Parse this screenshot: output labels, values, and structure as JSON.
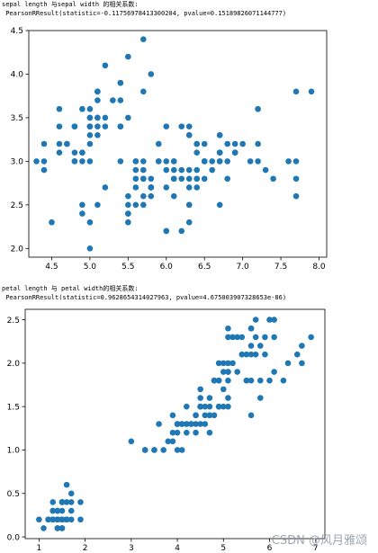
{
  "outputs": [
    {
      "line1": "sepal length 与sepal width 的相关系数:",
      "line2": " PearsonRResult(statistic=-0.11756978413300204, pvalue=0.15189826071144777)"
    },
    {
      "line1": "petal length 与 petal width的相关系数:",
      "line2": " PearsonRResult(statistic=0.9628654314027963, pvalue=4.675003907328653e-86)"
    }
  ],
  "watermark": "CSDN @风月雅颂",
  "colors": {
    "point": "#1f77b4",
    "axis": "#000000"
  },
  "chart_data": [
    {
      "type": "scatter",
      "title": "",
      "xlabel": "",
      "ylabel": "",
      "xlim": [
        4.2,
        8.1
      ],
      "ylim": [
        1.9,
        4.5
      ],
      "xticks": [
        4.5,
        5.0,
        5.5,
        6.0,
        6.5,
        7.0,
        7.5,
        8.0
      ],
      "xtick_labels": [
        "4.5",
        "5.0",
        "5.5",
        "6.0",
        "6.5",
        "7.0",
        "7.5",
        "8.0"
      ],
      "yticks": [
        2.0,
        2.5,
        3.0,
        3.5,
        4.0,
        4.5
      ],
      "ytick_labels": [
        "2.0",
        "2.5",
        "3.0",
        "3.5",
        "4.0",
        "4.5"
      ],
      "grid": false,
      "points": [
        [
          5.1,
          3.5
        ],
        [
          4.9,
          3.0
        ],
        [
          4.7,
          3.2
        ],
        [
          4.6,
          3.1
        ],
        [
          5.0,
          3.6
        ],
        [
          5.4,
          3.9
        ],
        [
          4.6,
          3.4
        ],
        [
          5.0,
          3.4
        ],
        [
          4.4,
          2.9
        ],
        [
          4.9,
          3.1
        ],
        [
          5.4,
          3.7
        ],
        [
          4.8,
          3.4
        ],
        [
          4.8,
          3.0
        ],
        [
          4.3,
          3.0
        ],
        [
          5.8,
          4.0
        ],
        [
          5.7,
          4.4
        ],
        [
          5.4,
          3.9
        ],
        [
          5.1,
          3.5
        ],
        [
          5.7,
          3.8
        ],
        [
          5.1,
          3.8
        ],
        [
          5.4,
          3.4
        ],
        [
          5.1,
          3.7
        ],
        [
          4.6,
          3.6
        ],
        [
          5.1,
          3.3
        ],
        [
          4.8,
          3.4
        ],
        [
          5.0,
          3.0
        ],
        [
          5.0,
          3.4
        ],
        [
          5.2,
          3.5
        ],
        [
          5.2,
          3.4
        ],
        [
          4.7,
          3.2
        ],
        [
          4.8,
          3.1
        ],
        [
          5.4,
          3.4
        ],
        [
          5.2,
          4.1
        ],
        [
          5.5,
          4.2
        ],
        [
          4.9,
          3.1
        ],
        [
          5.0,
          3.2
        ],
        [
          5.5,
          3.5
        ],
        [
          4.9,
          3.6
        ],
        [
          4.4,
          3.0
        ],
        [
          5.1,
          3.4
        ],
        [
          5.0,
          3.5
        ],
        [
          4.5,
          2.3
        ],
        [
          4.4,
          3.2
        ],
        [
          5.0,
          3.5
        ],
        [
          5.1,
          3.8
        ],
        [
          4.8,
          3.0
        ],
        [
          5.1,
          3.8
        ],
        [
          4.6,
          3.2
        ],
        [
          5.3,
          3.7
        ],
        [
          5.0,
          3.3
        ],
        [
          7.0,
          3.2
        ],
        [
          6.4,
          3.2
        ],
        [
          6.9,
          3.1
        ],
        [
          5.5,
          2.3
        ],
        [
          6.5,
          2.8
        ],
        [
          5.7,
          2.8
        ],
        [
          6.3,
          3.3
        ],
        [
          4.9,
          2.4
        ],
        [
          6.6,
          2.9
        ],
        [
          5.2,
          2.7
        ],
        [
          5.0,
          2.0
        ],
        [
          5.9,
          3.0
        ],
        [
          6.0,
          2.2
        ],
        [
          6.1,
          2.9
        ],
        [
          5.6,
          2.9
        ],
        [
          6.7,
          3.1
        ],
        [
          5.6,
          3.0
        ],
        [
          5.8,
          2.7
        ],
        [
          6.2,
          2.2
        ],
        [
          5.6,
          2.5
        ],
        [
          5.9,
          3.2
        ],
        [
          6.1,
          2.8
        ],
        [
          6.3,
          2.5
        ],
        [
          6.1,
          2.8
        ],
        [
          6.4,
          2.9
        ],
        [
          6.6,
          3.0
        ],
        [
          6.8,
          2.8
        ],
        [
          6.7,
          3.0
        ],
        [
          6.0,
          2.9
        ],
        [
          5.7,
          2.6
        ],
        [
          5.5,
          2.4
        ],
        [
          5.5,
          2.4
        ],
        [
          5.8,
          2.7
        ],
        [
          6.0,
          2.7
        ],
        [
          5.4,
          3.0
        ],
        [
          6.0,
          3.4
        ],
        [
          6.7,
          3.1
        ],
        [
          6.3,
          2.3
        ],
        [
          5.6,
          3.0
        ],
        [
          5.5,
          2.5
        ],
        [
          5.5,
          2.6
        ],
        [
          6.1,
          3.0
        ],
        [
          5.8,
          2.6
        ],
        [
          5.0,
          2.3
        ],
        [
          5.6,
          2.7
        ],
        [
          5.7,
          3.0
        ],
        [
          5.7,
          2.9
        ],
        [
          6.2,
          2.9
        ],
        [
          5.1,
          2.5
        ],
        [
          5.7,
          2.8
        ],
        [
          6.3,
          3.3
        ],
        [
          5.8,
          2.7
        ],
        [
          7.1,
          3.0
        ],
        [
          6.3,
          2.9
        ],
        [
          6.5,
          3.0
        ],
        [
          7.6,
          3.0
        ],
        [
          4.9,
          2.5
        ],
        [
          7.3,
          2.9
        ],
        [
          6.7,
          2.5
        ],
        [
          7.2,
          3.6
        ],
        [
          6.5,
          3.2
        ],
        [
          6.4,
          2.7
        ],
        [
          6.8,
          3.0
        ],
        [
          5.7,
          2.5
        ],
        [
          5.8,
          2.8
        ],
        [
          6.4,
          3.2
        ],
        [
          6.5,
          3.0
        ],
        [
          7.7,
          3.8
        ],
        [
          7.7,
          2.6
        ],
        [
          6.0,
          2.2
        ],
        [
          6.9,
          3.2
        ],
        [
          5.6,
          2.8
        ],
        [
          7.7,
          2.8
        ],
        [
          6.3,
          2.7
        ],
        [
          6.7,
          3.3
        ],
        [
          7.2,
          3.2
        ],
        [
          6.2,
          2.8
        ],
        [
          6.1,
          3.0
        ],
        [
          6.4,
          2.8
        ],
        [
          7.2,
          3.0
        ],
        [
          7.4,
          2.8
        ],
        [
          7.9,
          3.8
        ],
        [
          6.4,
          2.8
        ],
        [
          6.3,
          2.8
        ],
        [
          6.1,
          2.6
        ],
        [
          7.7,
          3.0
        ],
        [
          6.3,
          3.4
        ],
        [
          6.4,
          3.1
        ],
        [
          6.0,
          3.0
        ],
        [
          6.9,
          3.1
        ],
        [
          6.7,
          3.1
        ],
        [
          6.9,
          3.1
        ],
        [
          5.8,
          2.7
        ],
        [
          6.8,
          3.2
        ],
        [
          6.7,
          3.3
        ],
        [
          6.7,
          3.0
        ],
        [
          6.3,
          2.5
        ],
        [
          6.5,
          3.0
        ],
        [
          6.2,
          3.4
        ],
        [
          5.9,
          3.0
        ]
      ]
    },
    {
      "type": "scatter",
      "title": "",
      "xlabel": "",
      "ylabel": "",
      "xlim": [
        0.7,
        7.2
      ],
      "ylim": [
        -0.02,
        2.62
      ],
      "xticks": [
        1,
        2,
        3,
        4,
        5,
        6,
        7
      ],
      "xtick_labels": [
        "1",
        "2",
        "3",
        "4",
        "5",
        "6",
        "7"
      ],
      "yticks": [
        0.0,
        0.5,
        1.0,
        1.5,
        2.0,
        2.5
      ],
      "ytick_labels": [
        "0.0",
        "0.5",
        "1.0",
        "1.5",
        "2.0",
        "2.5"
      ],
      "grid": false,
      "points": [
        [
          1.4,
          0.2
        ],
        [
          1.4,
          0.2
        ],
        [
          1.3,
          0.2
        ],
        [
          1.5,
          0.2
        ],
        [
          1.4,
          0.2
        ],
        [
          1.7,
          0.4
        ],
        [
          1.4,
          0.3
        ],
        [
          1.5,
          0.2
        ],
        [
          1.4,
          0.2
        ],
        [
          1.5,
          0.1
        ],
        [
          1.5,
          0.2
        ],
        [
          1.6,
          0.2
        ],
        [
          1.4,
          0.1
        ],
        [
          1.1,
          0.1
        ],
        [
          1.2,
          0.2
        ],
        [
          1.5,
          0.4
        ],
        [
          1.3,
          0.4
        ],
        [
          1.4,
          0.3
        ],
        [
          1.7,
          0.3
        ],
        [
          1.5,
          0.3
        ],
        [
          1.7,
          0.2
        ],
        [
          1.5,
          0.4
        ],
        [
          1.0,
          0.2
        ],
        [
          1.7,
          0.5
        ],
        [
          1.9,
          0.2
        ],
        [
          1.6,
          0.2
        ],
        [
          1.6,
          0.4
        ],
        [
          1.5,
          0.2
        ],
        [
          1.4,
          0.2
        ],
        [
          1.6,
          0.2
        ],
        [
          1.6,
          0.2
        ],
        [
          1.5,
          0.4
        ],
        [
          1.5,
          0.1
        ],
        [
          1.4,
          0.2
        ],
        [
          1.5,
          0.2
        ],
        [
          1.2,
          0.2
        ],
        [
          1.3,
          0.2
        ],
        [
          1.4,
          0.1
        ],
        [
          1.3,
          0.2
        ],
        [
          1.5,
          0.2
        ],
        [
          1.3,
          0.3
        ],
        [
          1.3,
          0.3
        ],
        [
          1.3,
          0.2
        ],
        [
          1.6,
          0.6
        ],
        [
          1.9,
          0.4
        ],
        [
          1.4,
          0.3
        ],
        [
          1.6,
          0.2
        ],
        [
          1.4,
          0.2
        ],
        [
          1.5,
          0.2
        ],
        [
          1.4,
          0.2
        ],
        [
          4.7,
          1.4
        ],
        [
          4.5,
          1.5
        ],
        [
          4.9,
          1.5
        ],
        [
          4.0,
          1.3
        ],
        [
          4.6,
          1.5
        ],
        [
          4.5,
          1.3
        ],
        [
          4.7,
          1.6
        ],
        [
          3.3,
          1.0
        ],
        [
          4.6,
          1.3
        ],
        [
          3.9,
          1.4
        ],
        [
          3.5,
          1.0
        ],
        [
          4.2,
          1.5
        ],
        [
          4.0,
          1.0
        ],
        [
          4.7,
          1.4
        ],
        [
          3.6,
          1.3
        ],
        [
          4.4,
          1.4
        ],
        [
          4.5,
          1.5
        ],
        [
          4.1,
          1.0
        ],
        [
          4.5,
          1.5
        ],
        [
          3.9,
          1.1
        ],
        [
          4.8,
          1.8
        ],
        [
          4.0,
          1.3
        ],
        [
          4.9,
          1.5
        ],
        [
          4.7,
          1.2
        ],
        [
          4.3,
          1.3
        ],
        [
          4.4,
          1.4
        ],
        [
          4.8,
          1.4
        ],
        [
          5.0,
          1.7
        ],
        [
          4.5,
          1.5
        ],
        [
          3.5,
          1.0
        ],
        [
          3.8,
          1.1
        ],
        [
          3.7,
          1.0
        ],
        [
          3.9,
          1.2
        ],
        [
          5.1,
          1.6
        ],
        [
          4.5,
          1.5
        ],
        [
          4.5,
          1.6
        ],
        [
          4.7,
          1.5
        ],
        [
          4.4,
          1.3
        ],
        [
          4.1,
          1.3
        ],
        [
          4.0,
          1.3
        ],
        [
          4.4,
          1.2
        ],
        [
          4.6,
          1.4
        ],
        [
          4.0,
          1.2
        ],
        [
          3.3,
          1.0
        ],
        [
          4.2,
          1.3
        ],
        [
          4.2,
          1.2
        ],
        [
          4.2,
          1.3
        ],
        [
          4.3,
          1.3
        ],
        [
          3.0,
          1.1
        ],
        [
          4.1,
          1.3
        ],
        [
          6.0,
          2.5
        ],
        [
          5.1,
          1.9
        ],
        [
          5.9,
          2.1
        ],
        [
          5.6,
          1.8
        ],
        [
          5.8,
          2.2
        ],
        [
          6.6,
          2.1
        ],
        [
          4.5,
          1.7
        ],
        [
          6.3,
          1.8
        ],
        [
          5.8,
          1.8
        ],
        [
          6.1,
          2.5
        ],
        [
          5.1,
          2.0
        ],
        [
          5.3,
          1.9
        ],
        [
          5.5,
          2.1
        ],
        [
          5.0,
          2.0
        ],
        [
          5.1,
          2.4
        ],
        [
          5.3,
          2.3
        ],
        [
          5.5,
          1.8
        ],
        [
          6.7,
          2.2
        ],
        [
          6.9,
          2.3
        ],
        [
          5.0,
          1.5
        ],
        [
          5.7,
          2.3
        ],
        [
          4.9,
          2.0
        ],
        [
          6.7,
          2.0
        ],
        [
          4.9,
          1.8
        ],
        [
          5.7,
          2.1
        ],
        [
          6.0,
          1.8
        ],
        [
          4.8,
          1.8
        ],
        [
          4.9,
          1.8
        ],
        [
          5.6,
          2.1
        ],
        [
          5.8,
          1.6
        ],
        [
          6.1,
          1.9
        ],
        [
          6.4,
          2.0
        ],
        [
          5.6,
          2.2
        ],
        [
          5.1,
          1.5
        ],
        [
          5.6,
          1.4
        ],
        [
          6.1,
          2.3
        ],
        [
          5.6,
          2.4
        ],
        [
          5.5,
          1.8
        ],
        [
          4.8,
          1.8
        ],
        [
          5.4,
          2.1
        ],
        [
          5.6,
          2.4
        ],
        [
          5.1,
          2.3
        ],
        [
          5.1,
          1.9
        ],
        [
          5.9,
          2.3
        ],
        [
          5.7,
          2.5
        ],
        [
          5.2,
          2.3
        ],
        [
          5.0,
          1.9
        ],
        [
          5.2,
          2.0
        ],
        [
          5.4,
          2.3
        ],
        [
          5.1,
          1.8
        ]
      ]
    }
  ]
}
